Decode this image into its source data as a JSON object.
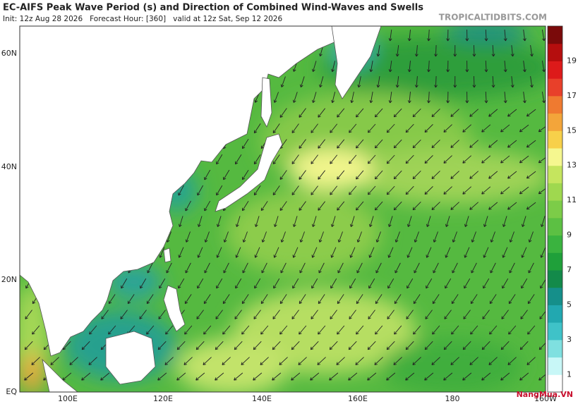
{
  "header": {
    "title": "EC-AIFS Peak Wave Period (s) and Direction of Combined Wind-Waves and Swells",
    "subtitle": "Init: 12z Aug 28 2026   Forecast Hour: [360]   valid at 12z Sat, Sep 12 2026",
    "site": "TROPICALTIDBITS.COM"
  },
  "map": {
    "lat_labels": [
      "60N",
      "40N",
      "20N",
      "EQ"
    ],
    "lon_labels": [
      "100E",
      "120E",
      "140E",
      "160E",
      "180",
      "160W"
    ]
  },
  "colorbar": {
    "labels": [
      "1",
      "3",
      "5",
      "7",
      "9",
      "11",
      "13",
      "15",
      "17",
      "19"
    ]
  },
  "watermark": "NangMua.VN"
}
